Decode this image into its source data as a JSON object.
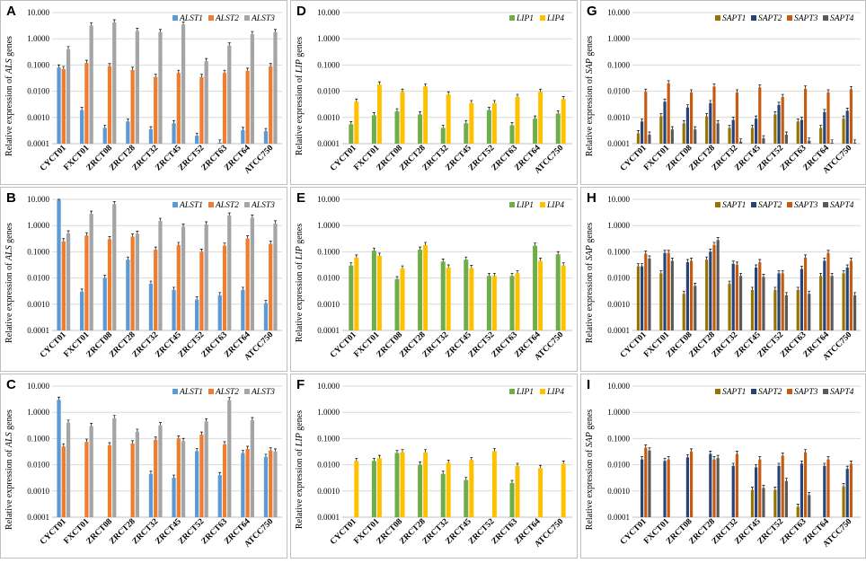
{
  "colors": {
    "ALS1": "#5b9bd5",
    "ALS2": "#ed7d31",
    "ALS3": "#a5a5a5",
    "LIP1": "#70ad47",
    "LIP4": "#ffc000",
    "SAPT1": "#997300",
    "SAPT2": "#264478",
    "SAPT3": "#c55a11",
    "SAPT4": "#595959"
  },
  "chart_data": [
    {
      "panel": "A",
      "type": "bar",
      "scale": "log",
      "ylabel_prefix": "Relative expression of ",
      "ylabel_gene": "ALS",
      "ylabel_suffix": " genes",
      "ytick_labels": [
        "10.000",
        "1.0000",
        "0.1000",
        "0.0100",
        "0.0010",
        "0.0001"
      ],
      "ylim": [
        0.0001,
        10
      ],
      "categories": [
        "CYCT01",
        "FXCT01",
        "ZRCT08",
        "ZRCT28",
        "ZRCT32",
        "ZRCT45",
        "ZRCT52",
        "ZRCT63",
        "ZRCT64",
        "ATCC750"
      ],
      "series": [
        {
          "name": "ALST1",
          "color_key": "ALS1",
          "values": [
            0.08,
            0.0019,
            0.0004,
            0.0007,
            0.00035,
            0.0006,
            0.0002,
            0.00011,
            0.00033,
            0.0003
          ]
        },
        {
          "name": "ALST2",
          "color_key": "ALS2",
          "values": [
            0.07,
            0.12,
            0.09,
            0.065,
            0.035,
            0.05,
            0.035,
            0.05,
            0.06,
            0.09
          ]
        },
        {
          "name": "ALST3",
          "color_key": "ALS3",
          "values": [
            0.4,
            3.2,
            4.2,
            2.0,
            1.8,
            3.5,
            0.14,
            0.55,
            1.5,
            1.8
          ]
        }
      ]
    },
    {
      "panel": "D",
      "type": "bar",
      "scale": "log",
      "ylabel_prefix": "Relative expression of ",
      "ylabel_gene": "LIP",
      "ylabel_suffix": " genes",
      "ytick_labels": [
        "10.000",
        "1.0000",
        "0.1000",
        "0.0100",
        "0.0010",
        "0.0001"
      ],
      "ylim": [
        0.0001,
        10
      ],
      "categories": [
        "CYCT01",
        "FXCT01",
        "ZRCT08",
        "ZRCT28",
        "ZRCT32",
        "ZRCT45",
        "ZRCT52",
        "ZRCT63",
        "ZRCT64",
        "ATCC750"
      ],
      "series": [
        {
          "name": "LIP1",
          "color_key": "LIP1",
          "values": [
            0.00055,
            0.0012,
            0.0017,
            0.0013,
            0.0004,
            0.0006,
            0.0019,
            0.0005,
            0.0009,
            0.0014
          ]
        },
        {
          "name": "LIP4",
          "color_key": "LIP4",
          "values": [
            0.004,
            0.018,
            0.0095,
            0.015,
            0.0075,
            0.0035,
            0.0035,
            0.006,
            0.0095,
            0.005
          ]
        }
      ]
    },
    {
      "panel": "G",
      "type": "bar",
      "scale": "log",
      "ylabel_prefix": "Relative expression of ",
      "ylabel_gene": "SAP",
      "ylabel_suffix": " genes",
      "ytick_labels": [
        "10.000",
        "1.0000",
        "0.1000",
        "0.0100",
        "0.0010",
        "0.0001"
      ],
      "ylim": [
        0.0001,
        10
      ],
      "categories": [
        "CYCT01",
        "FXCT01",
        "ZRCT08",
        "ZRCT28",
        "ZRCT32",
        "ZRCT45",
        "ZRCT52",
        "ZRCT63",
        "ZRCT64",
        "ATCC750"
      ],
      "series": [
        {
          "name": "SAPT1",
          "color_key": "SAPT1",
          "values": [
            0.00025,
            0.0011,
            0.0006,
            0.0011,
            0.0004,
            0.0004,
            0.0013,
            0.0007,
            0.0004,
            0.0009
          ]
        },
        {
          "name": "SAPT2",
          "color_key": "SAPT2",
          "values": [
            0.0007,
            0.004,
            0.0024,
            0.0035,
            0.0008,
            0.0009,
            0.003,
            0.0008,
            0.0016,
            0.0018
          ]
        },
        {
          "name": "SAPT3",
          "color_key": "SAPT3",
          "values": [
            0.0095,
            0.02,
            0.009,
            0.015,
            0.009,
            0.014,
            0.006,
            0.0125,
            0.009,
            0.012
          ]
        },
        {
          "name": "SAPT4",
          "color_key": "SAPT4",
          "values": [
            0.00022,
            0.00035,
            0.00035,
            0.0006,
            0.00012,
            0.00016,
            0.00022,
            0.00013,
            0.00011,
            0.00011
          ]
        }
      ]
    },
    {
      "panel": "B",
      "type": "bar",
      "scale": "log",
      "ylabel_prefix": "Relative expression of ",
      "ylabel_gene": "ALS",
      "ylabel_suffix": " genes",
      "ytick_labels": [
        "10.000",
        "1.0000",
        "0.1000",
        "0.0100",
        "0.0010",
        "0.0001"
      ],
      "ylim": [
        0.0001,
        10
      ],
      "categories": [
        "CYCT01",
        "FXCT01",
        "ZRCT08",
        "ZRCT28",
        "ZRCT32",
        "ZRCT45",
        "ZRCT52",
        "ZRCT63",
        "ZRCT64",
        "ATCC750"
      ],
      "series": [
        {
          "name": "ALST1",
          "color_key": "ALS1",
          "values": [
            9.5,
            0.003,
            0.01,
            0.05,
            0.006,
            0.0035,
            0.0015,
            0.0022,
            0.0035,
            0.0011
          ]
        },
        {
          "name": "ALST2",
          "color_key": "ALS2",
          "values": [
            0.25,
            0.42,
            0.3,
            0.38,
            0.12,
            0.18,
            0.1,
            0.17,
            0.32,
            0.2
          ]
        },
        {
          "name": "ALST3",
          "color_key": "ALS3",
          "values": [
            0.5,
            2.8,
            6.5,
            0.48,
            1.5,
            0.9,
            1.1,
            2.4,
            2.0,
            1.2
          ]
        }
      ]
    },
    {
      "panel": "E",
      "type": "bar",
      "scale": "log",
      "ylabel_prefix": "Relative expression of ",
      "ylabel_gene": "LIP",
      "ylabel_suffix": " genes",
      "ytick_labels": [
        "10.000",
        "1.0000",
        "0.1000",
        "0.0100",
        "0.0010",
        "0.0001"
      ],
      "ylim": [
        0.0001,
        10
      ],
      "categories": [
        "CYCT01",
        "FXCT01",
        "ZRCT08",
        "ZRCT28",
        "ZRCT32",
        "ZRCT45",
        "ZRCT52",
        "ZRCT63",
        "ZRCT64",
        "ATCC750"
      ],
      "series": [
        {
          "name": "LIP1",
          "color_key": "LIP1",
          "values": [
            0.03,
            0.11,
            0.009,
            0.12,
            0.042,
            0.05,
            0.012,
            0.012,
            0.17,
            0.08
          ]
        },
        {
          "name": "LIP4",
          "color_key": "LIP4",
          "values": [
            0.06,
            0.07,
            0.023,
            0.18,
            0.025,
            0.024,
            0.012,
            0.015,
            0.045,
            0.03
          ]
        }
      ]
    },
    {
      "panel": "H",
      "type": "bar",
      "scale": "log",
      "ylabel_prefix": "Relative expression of ",
      "ylabel_gene": "SAP",
      "ylabel_suffix": " genes",
      "ytick_labels": [
        "10.000",
        "1.0000",
        "0.1000",
        "0.0100",
        "0.0010",
        "0.0001"
      ],
      "ylim": [
        0.0001,
        10
      ],
      "categories": [
        "CYCT01",
        "FXCT01",
        "ZRCT08",
        "ZRCT28",
        "ZRCT32",
        "ZRCT45",
        "ZRCT52",
        "ZRCT63",
        "ZRCT64",
        "ATCC750"
      ],
      "series": [
        {
          "name": "SAPT1",
          "color_key": "SAPT1",
          "values": [
            0.028,
            0.015,
            0.0025,
            0.05,
            0.006,
            0.0035,
            0.0035,
            0.0035,
            0.012,
            0.015
          ]
        },
        {
          "name": "SAPT2",
          "color_key": "SAPT2",
          "values": [
            0.028,
            0.09,
            0.04,
            0.1,
            0.035,
            0.025,
            0.015,
            0.022,
            0.045,
            0.025
          ]
        },
        {
          "name": "SAPT3",
          "color_key": "SAPT3",
          "values": [
            0.085,
            0.09,
            0.045,
            0.18,
            0.032,
            0.04,
            0.015,
            0.06,
            0.09,
            0.045
          ]
        },
        {
          "name": "SAPT4",
          "color_key": "SAPT4",
          "values": [
            0.055,
            0.045,
            0.005,
            0.28,
            0.012,
            0.011,
            0.0022,
            0.0025,
            0.012,
            0.0022
          ]
        }
      ]
    },
    {
      "panel": "C",
      "type": "bar",
      "scale": "log",
      "ylabel_prefix": "Relative expression of ",
      "ylabel_gene": "ALS",
      "ylabel_suffix": " genes",
      "ytick_labels": [
        "10.000",
        "1.0000",
        "0.1000",
        "0.0100",
        "0.0010",
        "0.0001"
      ],
      "ylim": [
        0.0001,
        10
      ],
      "categories": [
        "CYCT01",
        "FXCT01",
        "ZRCT08",
        "ZRCT28",
        "ZRCT32",
        "ZRCT45",
        "ZRCT52",
        "ZRCT63",
        "ZRCT64",
        "ATCC750"
      ],
      "series": [
        {
          "name": "ALST1",
          "color_key": "ALS1",
          "values": [
            3.0,
            null,
            null,
            null,
            0.0045,
            0.0032,
            0.033,
            0.004,
            0.028,
            0.02
          ]
        },
        {
          "name": "ALST2",
          "color_key": "ALS2",
          "values": [
            0.05,
            0.075,
            0.055,
            0.065,
            0.09,
            0.1,
            0.14,
            0.06,
            0.04,
            0.035
          ]
        },
        {
          "name": "ALST3",
          "color_key": "ALS3",
          "values": [
            0.4,
            0.3,
            0.6,
            0.18,
            0.32,
            0.08,
            0.45,
            2.9,
            0.5,
            0.032
          ]
        }
      ]
    },
    {
      "panel": "F",
      "type": "bar",
      "scale": "log",
      "ylabel_prefix": "Relative expression of ",
      "ylabel_gene": "LIP",
      "ylabel_suffix": " genes",
      "ytick_labels": [
        "10.000",
        "1.0000",
        "0.1000",
        "0.0100",
        "0.0010",
        "0.0001"
      ],
      "ylim": [
        0.0001,
        10
      ],
      "categories": [
        "CYCT01",
        "FXCT01",
        "ZRCT08",
        "ZRCT28",
        "ZRCT32",
        "ZRCT45",
        "ZRCT52",
        "ZRCT63",
        "ZRCT64",
        "ATCC750"
      ],
      "series": [
        {
          "name": "LIP1",
          "color_key": "LIP1",
          "values": [
            null,
            0.014,
            0.028,
            0.01,
            0.0045,
            0.0026,
            null,
            0.002,
            null,
            null
          ]
        },
        {
          "name": "LIP4",
          "color_key": "LIP4",
          "values": [
            0.014,
            0.018,
            0.03,
            0.03,
            0.012,
            0.015,
            0.033,
            0.009,
            0.0075,
            0.011
          ]
        }
      ]
    },
    {
      "panel": "I",
      "type": "bar",
      "scale": "log",
      "ylabel_prefix": "Relative expression of ",
      "ylabel_gene": "SAP",
      "ylabel_suffix": " genes",
      "ytick_labels": [
        "10.000",
        "1.0000",
        "0.1000",
        "0.0100",
        "0.0010",
        "0.0001"
      ],
      "ylim": [
        0.0001,
        10
      ],
      "categories": [
        "CYCT01",
        "FXCT01",
        "ZRCT08",
        "ZRCT28",
        "ZRCT32",
        "ZRCT45",
        "ZRCT52",
        "ZRCT63",
        "ZRCT64",
        "ATCC750"
      ],
      "series": [
        {
          "name": "SAPT1",
          "color_key": "SAPT1",
          "values": [
            null,
            null,
            null,
            null,
            null,
            0.0011,
            0.0011,
            0.00025,
            null,
            0.0015
          ]
        },
        {
          "name": "SAPT2",
          "color_key": "SAPT2",
          "values": [
            0.016,
            0.014,
            0.019,
            0.026,
            0.009,
            0.008,
            0.009,
            0.011,
            0.009,
            0.007
          ]
        },
        {
          "name": "SAPT3",
          "color_key": "SAPT3",
          "values": [
            0.045,
            0.016,
            0.032,
            0.016,
            0.026,
            0.016,
            0.022,
            0.03,
            0.016,
            0.011
          ]
        },
        {
          "name": "SAPT4",
          "color_key": "SAPT4",
          "values": [
            0.035,
            null,
            null,
            0.018,
            null,
            0.0013,
            0.0024,
            0.0007,
            null,
            null
          ]
        }
      ]
    }
  ]
}
